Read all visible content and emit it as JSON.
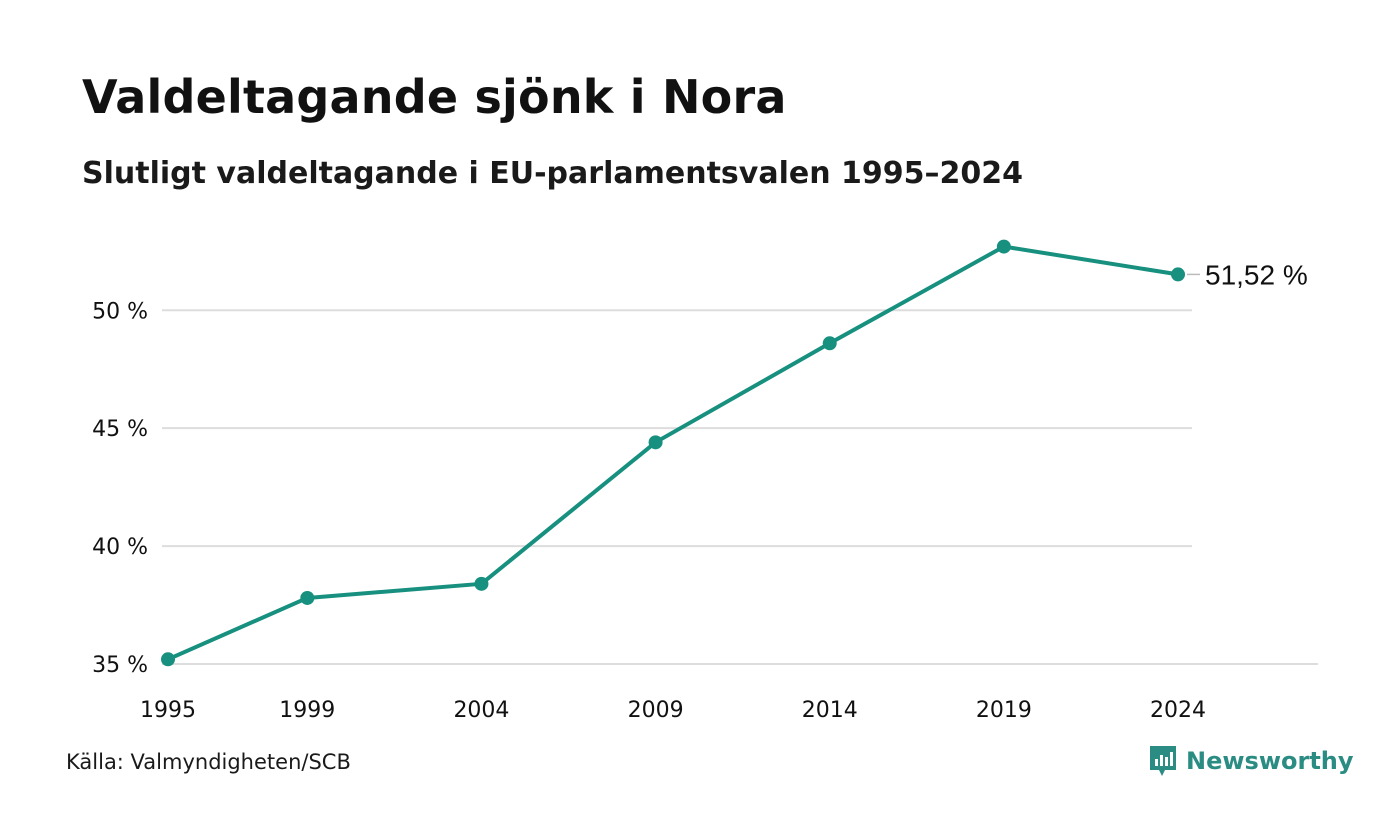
{
  "title": "Valdeltagande sjönk i Nora",
  "subtitle": "Slutligt valdeltagande i EU-parlamentsvalen 1995–2024",
  "source": "Källa: Valmyndigheten/SCB",
  "brand": {
    "name": "Newsworthy",
    "icon": "newsworthy-logo-icon",
    "color": "#2a8c82"
  },
  "colors": {
    "line": "#17907f",
    "grid": "#dddddd",
    "text": "#111111"
  },
  "chart_data": {
    "type": "line",
    "categories": [
      "1995",
      "1999",
      "2004",
      "2009",
      "2014",
      "2019",
      "2024"
    ],
    "series": [
      {
        "values": [
          35.2,
          37.8,
          38.4,
          44.4,
          48.6,
          52.7,
          51.52
        ]
      }
    ],
    "yticks": [
      "35 %",
      "40 %",
      "45 %",
      "50 %"
    ],
    "ytick_values": [
      35,
      40,
      45,
      50
    ],
    "ylim": [
      35,
      53
    ],
    "end_label": "51,52 %",
    "grid": true,
    "xlabel": "",
    "ylabel": ""
  }
}
